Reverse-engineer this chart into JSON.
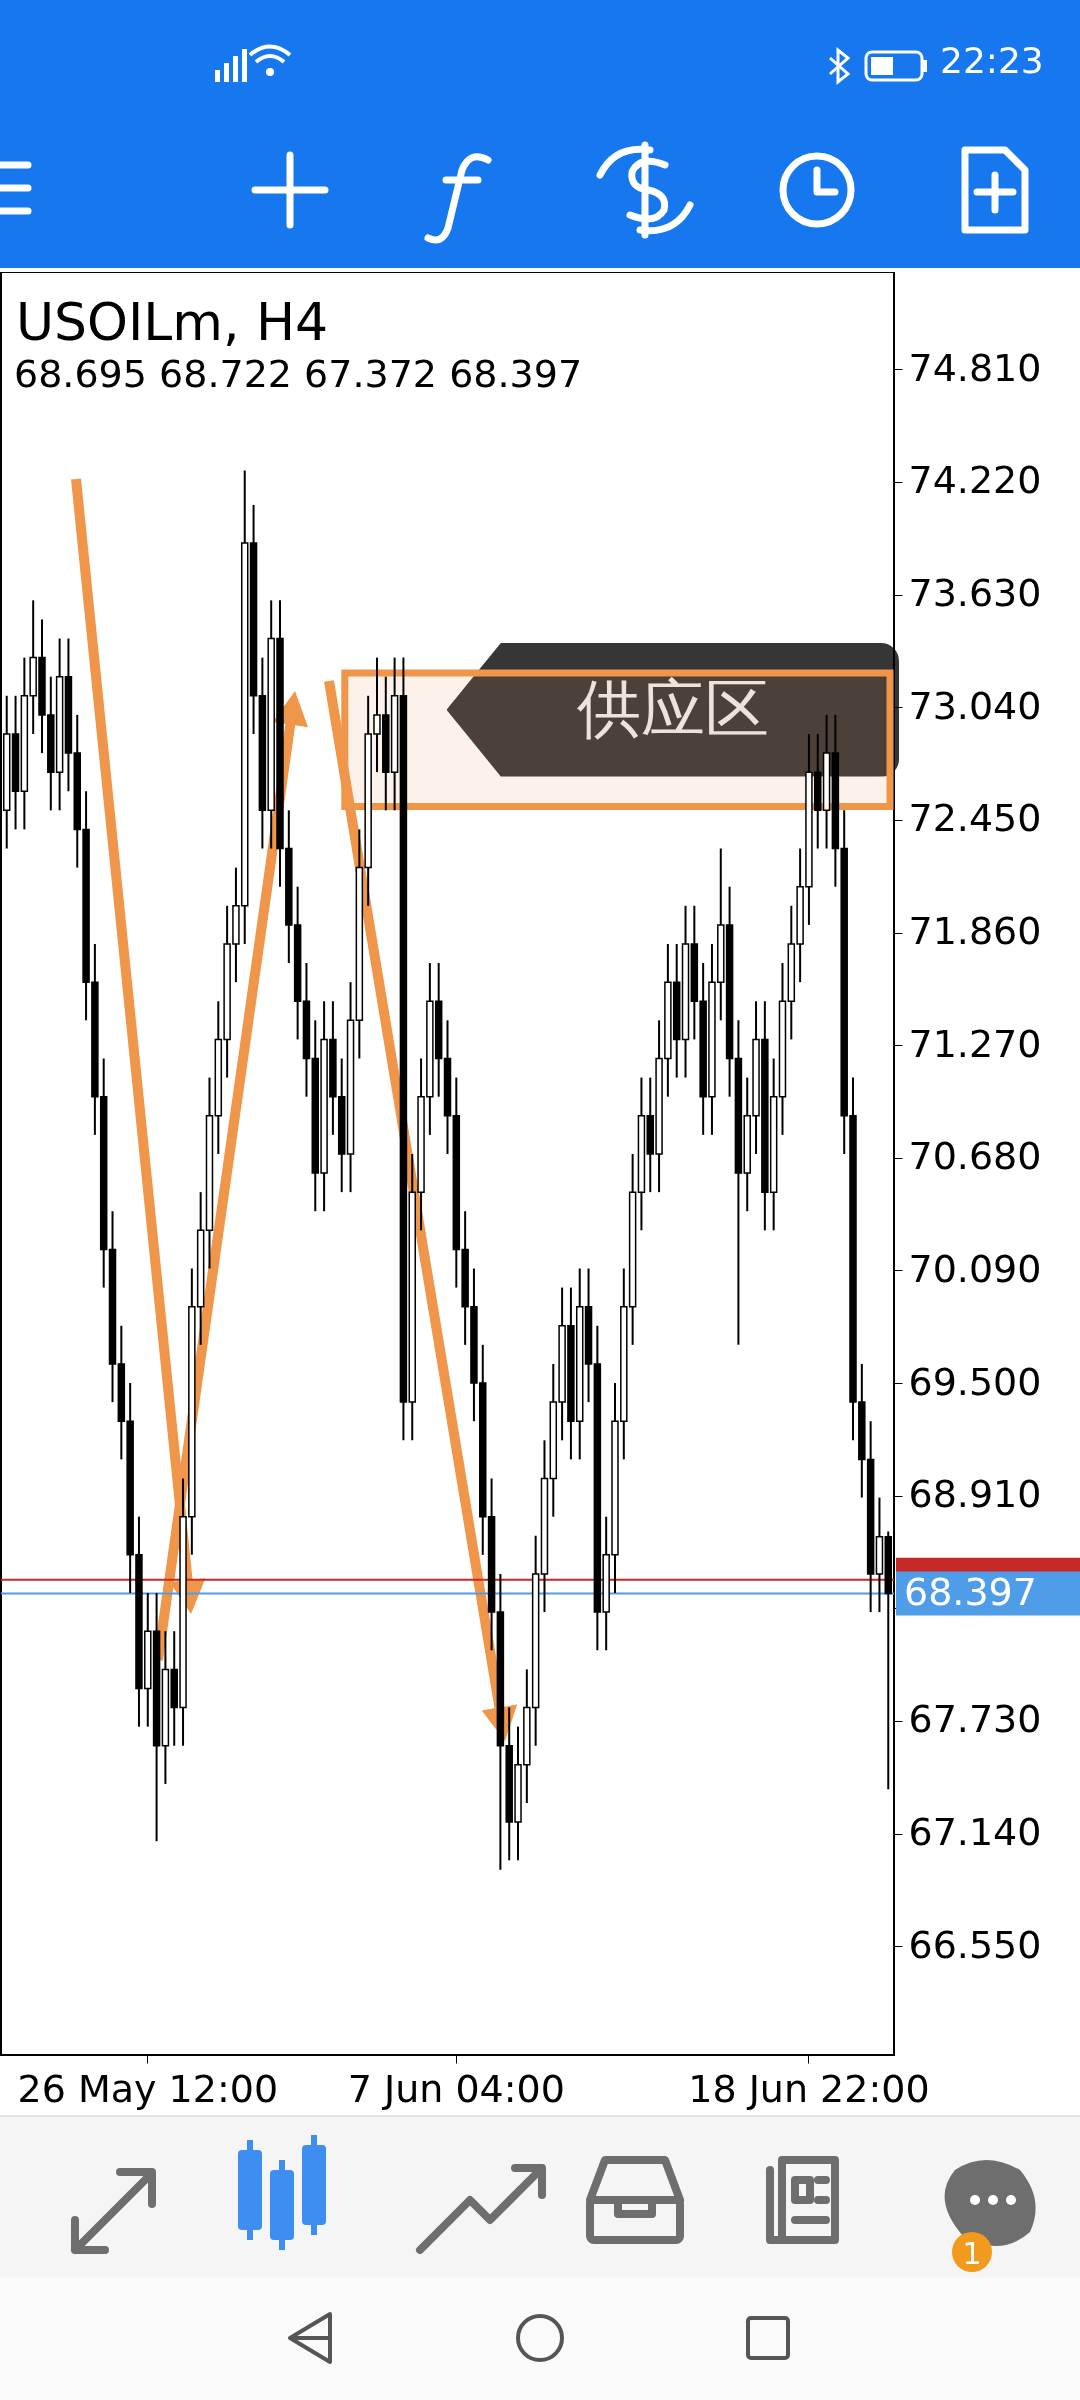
{
  "chart_data": {
    "type": "candlestick",
    "title": "USOILm, H4",
    "subtitle": "68.695 68.722 67.372 68.397",
    "categories": [
      null,
      null,
      null,
      null,
      null,
      null,
      null,
      null,
      null,
      null,
      null,
      null,
      null,
      null,
      null,
      null,
      "26 May 12:00",
      null,
      null,
      null,
      null,
      null,
      null,
      null,
      null,
      null,
      null,
      null,
      null,
      null,
      null,
      null,
      null,
      null,
      null,
      null,
      null,
      null,
      null,
      null,
      null,
      null,
      null,
      null,
      null,
      null,
      null,
      null,
      null,
      null,
      null,
      "7 Jun 04:00",
      null,
      null,
      null,
      null,
      null,
      null,
      null,
      null,
      null,
      null,
      null,
      null,
      null,
      null,
      null,
      null,
      null,
      null,
      null,
      null,
      null,
      null,
      null,
      null,
      null,
      null,
      null,
      null,
      null,
      null,
      null,
      null,
      null,
      null,
      null,
      null,
      null,
      null,
      null,
      "18 Jun 22:00",
      null,
      null,
      null,
      null,
      null,
      null,
      null,
      null,
      null
    ],
    "ohlc": [
      [
        72.5,
        73.1,
        72.3,
        72.9
      ],
      [
        72.9,
        73.1,
        72.4,
        72.6
      ],
      [
        72.6,
        73.3,
        72.4,
        73.1
      ],
      [
        73.1,
        73.6,
        72.9,
        73.3
      ],
      [
        73.3,
        73.5,
        72.8,
        73.0
      ],
      [
        73.0,
        73.2,
        72.5,
        72.7
      ],
      [
        72.7,
        73.4,
        72.5,
        73.2
      ],
      [
        73.2,
        73.4,
        72.6,
        72.8
      ],
      [
        72.8,
        73.0,
        72.2,
        72.4
      ],
      [
        72.4,
        72.6,
        71.4,
        71.6
      ],
      [
        71.6,
        71.8,
        70.8,
        71.0
      ],
      [
        71.0,
        71.2,
        70.0,
        70.2
      ],
      [
        70.2,
        70.4,
        69.4,
        69.6
      ],
      [
        69.6,
        69.8,
        69.1,
        69.3
      ],
      [
        69.3,
        69.5,
        68.4,
        68.6
      ],
      [
        68.6,
        68.8,
        67.7,
        67.9
      ],
      [
        67.9,
        68.4,
        67.7,
        68.2
      ],
      [
        68.2,
        68.4,
        67.1,
        67.6
      ],
      [
        67.6,
        68.2,
        67.4,
        68.0
      ],
      [
        68.0,
        68.2,
        67.6,
        67.8
      ],
      [
        67.8,
        69.0,
        67.6,
        68.8
      ],
      [
        68.8,
        70.1,
        68.6,
        69.9
      ],
      [
        69.9,
        70.5,
        69.7,
        70.3
      ],
      [
        70.3,
        71.1,
        70.1,
        70.9
      ],
      [
        70.9,
        71.5,
        70.7,
        71.3
      ],
      [
        71.3,
        72.0,
        71.1,
        71.8
      ],
      [
        71.8,
        72.2,
        71.6,
        72.0
      ],
      [
        72.0,
        74.28,
        71.8,
        73.9
      ],
      [
        73.9,
        74.1,
        72.9,
        73.1
      ],
      [
        73.1,
        73.3,
        72.3,
        72.5
      ],
      [
        72.5,
        73.6,
        72.3,
        73.4
      ],
      [
        73.4,
        73.6,
        72.1,
        72.3
      ],
      [
        72.3,
        72.5,
        71.7,
        71.9
      ],
      [
        71.9,
        72.1,
        71.3,
        71.5
      ],
      [
        71.5,
        71.7,
        71.0,
        71.2
      ],
      [
        71.2,
        71.4,
        70.4,
        70.6
      ],
      [
        70.6,
        71.5,
        70.4,
        71.3
      ],
      [
        71.3,
        71.5,
        70.8,
        71.0
      ],
      [
        71.0,
        71.2,
        70.5,
        70.7
      ],
      [
        70.7,
        71.6,
        70.5,
        71.4
      ],
      [
        71.4,
        72.4,
        71.2,
        72.2
      ],
      [
        72.2,
        73.1,
        72.0,
        72.9
      ],
      [
        72.9,
        73.3,
        72.7,
        73.0
      ],
      [
        73.0,
        73.2,
        72.5,
        72.7
      ],
      [
        72.7,
        73.3,
        72.5,
        73.1
      ],
      [
        73.1,
        73.3,
        69.2,
        69.4
      ],
      [
        69.4,
        70.7,
        69.2,
        70.5
      ],
      [
        70.5,
        71.2,
        70.3,
        71.0
      ],
      [
        71.0,
        71.7,
        70.8,
        71.5
      ],
      [
        71.5,
        71.7,
        71.0,
        71.2
      ],
      [
        71.2,
        71.4,
        70.7,
        70.9
      ],
      [
        70.9,
        71.1,
        70.0,
        70.2
      ],
      [
        70.2,
        70.4,
        69.7,
        69.9
      ],
      [
        69.9,
        70.1,
        69.3,
        69.5
      ],
      [
        69.5,
        69.7,
        68.6,
        68.8
      ],
      [
        68.8,
        69.0,
        68.1,
        68.3
      ],
      [
        68.3,
        68.5,
        66.95,
        67.6
      ],
      [
        67.6,
        67.8,
        67.0,
        67.2
      ],
      [
        67.2,
        67.7,
        67.0,
        67.5
      ],
      [
        67.5,
        68.0,
        67.3,
        67.8
      ],
      [
        67.8,
        68.7,
        67.6,
        68.5
      ],
      [
        68.5,
        69.2,
        68.3,
        69.0
      ],
      [
        69.0,
        69.6,
        68.8,
        69.4
      ],
      [
        69.4,
        70.0,
        69.2,
        69.8
      ],
      [
        69.8,
        70.0,
        69.1,
        69.3
      ],
      [
        69.3,
        70.1,
        69.1,
        69.9
      ],
      [
        69.9,
        70.1,
        69.4,
        69.6
      ],
      [
        69.6,
        69.8,
        68.1,
        68.3
      ],
      [
        68.3,
        68.8,
        68.1,
        68.6
      ],
      [
        68.6,
        69.5,
        68.4,
        69.3
      ],
      [
        69.3,
        70.1,
        69.1,
        69.9
      ],
      [
        69.9,
        70.7,
        69.7,
        70.5
      ],
      [
        70.5,
        71.1,
        70.3,
        70.9
      ],
      [
        70.9,
        71.1,
        70.5,
        70.7
      ],
      [
        70.7,
        71.4,
        70.5,
        71.2
      ],
      [
        71.2,
        71.8,
        71.0,
        71.6
      ],
      [
        71.6,
        71.8,
        71.1,
        71.3
      ],
      [
        71.3,
        72.0,
        71.1,
        71.8
      ],
      [
        71.8,
        72.0,
        71.3,
        71.5
      ],
      [
        71.5,
        71.7,
        70.8,
        71.0
      ],
      [
        71.0,
        71.8,
        70.8,
        71.6
      ],
      [
        71.6,
        72.3,
        71.4,
        71.9
      ],
      [
        71.9,
        72.1,
        71.0,
        71.2
      ],
      [
        71.2,
        71.4,
        69.7,
        70.6
      ],
      [
        70.6,
        71.1,
        70.4,
        70.9
      ],
      [
        70.9,
        71.5,
        70.7,
        71.3
      ],
      [
        71.3,
        71.5,
        70.3,
        70.5
      ],
      [
        70.5,
        71.2,
        70.3,
        71.0
      ],
      [
        71.0,
        71.7,
        70.8,
        71.5
      ],
      [
        71.5,
        72.0,
        71.3,
        71.8
      ],
      [
        71.8,
        72.3,
        71.6,
        72.1
      ],
      [
        72.1,
        72.9,
        71.9,
        72.7
      ],
      [
        72.7,
        72.9,
        72.3,
        72.5
      ],
      [
        72.5,
        73.0,
        72.3,
        72.8
      ],
      [
        72.8,
        73.0,
        72.1,
        72.3
      ],
      [
        72.3,
        72.5,
        70.7,
        70.9
      ],
      [
        70.9,
        71.1,
        69.2,
        69.4
      ],
      [
        69.4,
        69.6,
        68.9,
        69.1
      ],
      [
        69.1,
        69.3,
        68.3,
        68.5
      ],
      [
        68.5,
        68.9,
        68.3,
        68.695
      ],
      [
        68.695,
        68.722,
        67.372,
        68.397
      ]
    ],
    "ylim": [
      65.98,
      75.32
    ],
    "yticks": [
      {
        "value": 74.81,
        "label": "74.810"
      },
      {
        "value": 74.22,
        "label": "74.220"
      },
      {
        "value": 73.63,
        "label": "73.630"
      },
      {
        "value": 73.04,
        "label": "73.040"
      },
      {
        "value": 72.45,
        "label": "72.450"
      },
      {
        "value": 71.86,
        "label": "71.860"
      },
      {
        "value": 71.27,
        "label": "71.270"
      },
      {
        "value": 70.68,
        "label": "70.680"
      },
      {
        "value": 70.09,
        "label": "70.090"
      },
      {
        "value": 69.5,
        "label": "69.500"
      },
      {
        "value": 68.91,
        "label": "68.910"
      },
      {
        "value": 68.32,
        "label": null
      },
      {
        "value": 67.73,
        "label": "67.730"
      },
      {
        "value": 67.14,
        "label": "67.140"
      },
      {
        "value": 66.55,
        "label": "66.550"
      }
    ],
    "ref_lines": [
      {
        "axis": "y",
        "value": 68.47,
        "color": "#c62828"
      },
      {
        "axis": "y",
        "value": 68.397,
        "label": "68.397",
        "color": "#4f9de8"
      }
    ],
    "bands": [
      {
        "axis": "y",
        "from": 72.52,
        "to": 73.22,
        "label": "供应区",
        "color": "#f0964a"
      }
    ],
    "annotations": [
      "22:23",
      "1"
    ]
  }
}
